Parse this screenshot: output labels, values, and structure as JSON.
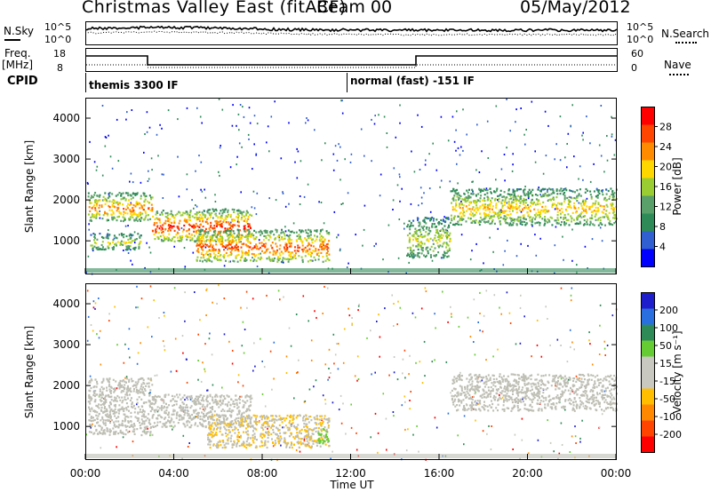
{
  "header": {
    "title": "Christmas Valley East (fitACF)",
    "beam": "Beam 00",
    "date": "05/May/2012"
  },
  "top_panels": {
    "nsky_label": "N.Sky",
    "nsky_ticks": [
      "10^5",
      "10^0"
    ],
    "nsearch_label": "N.Search",
    "nsearch_ticks": [
      "10^5",
      "10^0"
    ],
    "freq_label": "Freq.",
    "freq_unit": "[MHz]",
    "freq_ticks": [
      "18",
      "8"
    ],
    "nave_label": "Nave",
    "nave_ticks": [
      "60",
      "0"
    ],
    "cpid_label": "CPID",
    "cpid_modes": [
      "themis 3300 IF",
      "normal (fast) -151 IF"
    ]
  },
  "colors": {
    "power_scale": [
      "#0000ff",
      "#2f5fd0",
      "#2e8b57",
      "#5aa06a",
      "#9acd32",
      "#ffd700",
      "#ff8c00",
      "#ff4500",
      "#ff0000"
    ],
    "velocity_scale": [
      "#1e1ecc",
      "#2a6fe0",
      "#2e8b57",
      "#66cc33",
      "#c8c8c0",
      "#c8c8c0",
      "#ffbf00",
      "#ff8800",
      "#ff4400",
      "#ff0000"
    ],
    "ground_scatter": "#bebeb4"
  },
  "chart_data": [
    {
      "type": "heatmap",
      "panel": "power",
      "ylabel": "Slant Range [km]",
      "xlabel": "",
      "ylim": [
        200,
        4500
      ],
      "yticks": [
        "1000",
        "2000",
        "3000",
        "4000"
      ],
      "xticks": [
        "00:00",
        "04:00",
        "08:00",
        "12:00",
        "16:00",
        "20:00",
        "00:00"
      ],
      "colorbar_label": "Power [dB]",
      "colorbar_ticks": [
        "4",
        "8",
        "12",
        "16",
        "20",
        "24",
        "28"
      ],
      "regions": [
        {
          "t_start": 0.1,
          "t_end": 3.0,
          "range_start": 1500,
          "range_end": 2200,
          "level": 26
        },
        {
          "t_start": 0.2,
          "t_end": 2.5,
          "range_start": 800,
          "range_end": 1200,
          "level": 18
        },
        {
          "t_start": 3.0,
          "t_end": 7.5,
          "range_start": 1000,
          "range_end": 1800,
          "level": 30
        },
        {
          "t_start": 5.0,
          "t_end": 11.0,
          "range_start": 500,
          "range_end": 1300,
          "level": 28
        },
        {
          "t_start": 14.5,
          "t_end": 16.5,
          "range_start": 600,
          "range_end": 1600,
          "level": 18
        },
        {
          "t_start": 16.5,
          "t_end": 24.0,
          "range_start": 1400,
          "range_end": 2300,
          "level": 22
        }
      ]
    },
    {
      "type": "heatmap",
      "panel": "velocity",
      "ylabel": "Slant Range [km]",
      "xlabel": "Time UT",
      "ylim": [
        200,
        4500
      ],
      "yticks": [
        "1000",
        "2000",
        "3000",
        "4000"
      ],
      "xticks": [
        "00:00",
        "04:00",
        "08:00",
        "12:00",
        "16:00",
        "20:00",
        "00:00"
      ],
      "colorbar_label": "Velocity [m s⁻¹]",
      "colorbar_ticks": [
        "200",
        "100",
        "50",
        "15",
        "-15",
        "-50",
        "-100",
        "-200"
      ],
      "regions": [
        {
          "t_start": 0.1,
          "t_end": 3.0,
          "range_start": 800,
          "range_end": 2200,
          "velocity": 0
        },
        {
          "t_start": 3.0,
          "t_end": 7.5,
          "range_start": 1000,
          "range_end": 1800,
          "velocity": 0
        },
        {
          "t_start": 5.5,
          "t_end": 11.0,
          "range_start": 500,
          "range_end": 1300,
          "velocity": -20
        },
        {
          "t_start": 10.5,
          "t_end": 11.0,
          "range_start": 600,
          "range_end": 1000,
          "velocity": 60
        },
        {
          "t_start": 16.5,
          "t_end": 24.0,
          "range_start": 1400,
          "range_end": 2300,
          "velocity": 0
        }
      ]
    }
  ]
}
